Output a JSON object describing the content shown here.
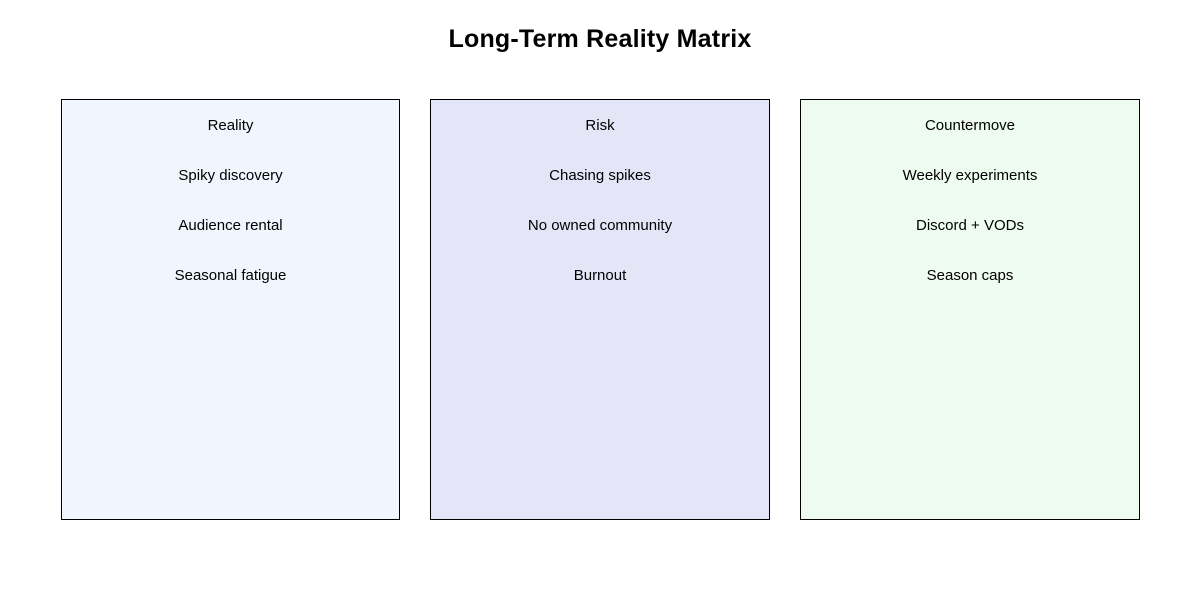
{
  "title": "Long-Term Reality Matrix",
  "columns": [
    {
      "header": "Reality",
      "items": [
        "Spiky discovery",
        "Audience rental",
        "Seasonal fatigue"
      ],
      "bg": "#EFF6FD"
    },
    {
      "header": "Risk",
      "items": [
        "Chasing spikes",
        "No owned community",
        "Burnout"
      ],
      "bg": "#E5E5F8"
    },
    {
      "header": "Countermove",
      "items": [
        "Weekly experiments",
        "Discord + VODs",
        "Season caps"
      ],
      "bg": "#EEFCF0"
    }
  ],
  "colors": {
    "background": "#FFFFFF",
    "border": "#000000",
    "text": "#000000"
  }
}
